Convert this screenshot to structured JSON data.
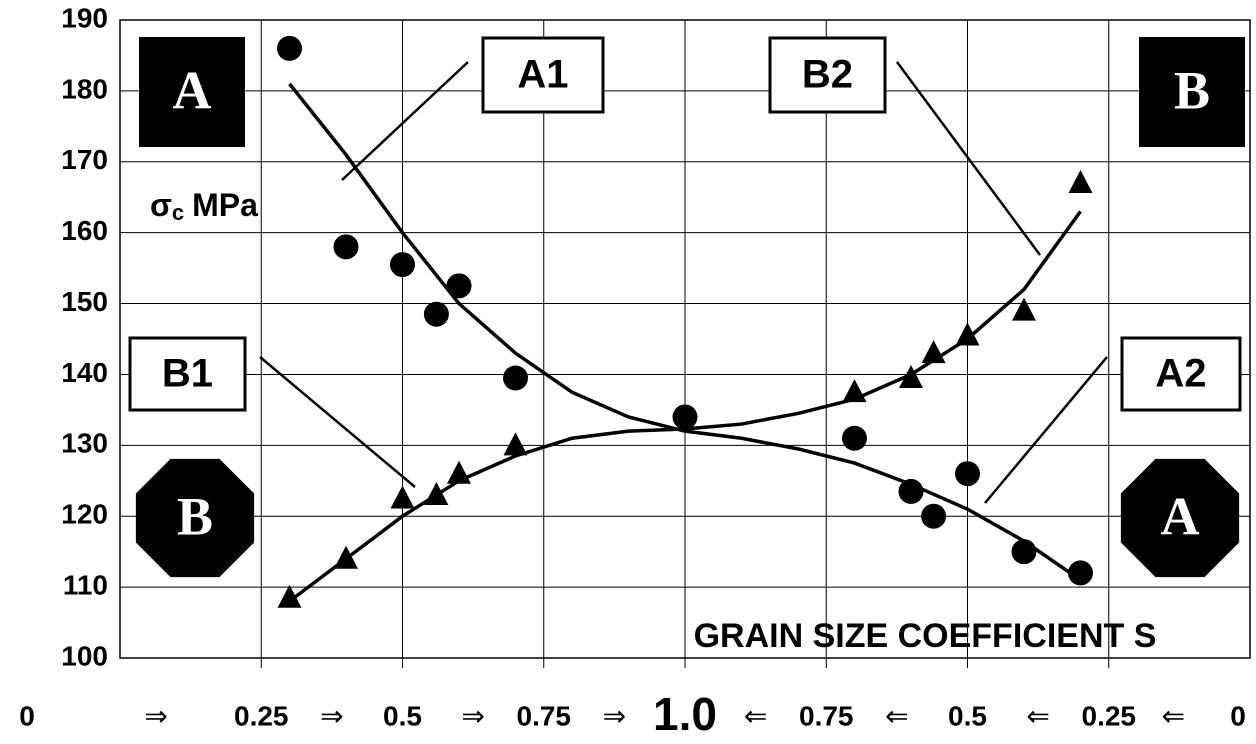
{
  "chart_data": {
    "type": "scatter",
    "y_label": {
      "symbol": "σ",
      "subscript": "c",
      "unit": "MPa"
    },
    "x_label": "GRAIN SIZE COEFFICIENT S",
    "xlim": [
      0,
      2
    ],
    "ylim": [
      100,
      190
    ],
    "xticks": [
      0,
      0.25,
      0.5,
      0.75,
      {
        "value": 1,
        "label": "1.0"
      },
      {
        "value": 1.25,
        "label": "0.75"
      },
      {
        "value": 1.5,
        "label": "0.5"
      },
      {
        "value": 1.75,
        "label": "0.25"
      },
      {
        "value": 2,
        "label": "0"
      }
    ],
    "xtick_separators": [
      "⇒",
      "⇒",
      "⇒",
      "⇒",
      "⇐",
      "⇐",
      "⇐",
      "⇐"
    ],
    "yticks": [
      100,
      110,
      120,
      130,
      140,
      150,
      160,
      170,
      180,
      190
    ],
    "grid": true,
    "series": [
      {
        "marker": "circle",
        "color": "#000000",
        "x": [
          0.3,
          0.4,
          0.5,
          0.56,
          0.6,
          0.7,
          1.0,
          1.3,
          1.4,
          1.44,
          1.5,
          1.6,
          1.7
        ],
        "values": [
          186,
          158,
          155.5,
          148.5,
          152.5,
          139.5,
          134,
          131,
          123.5,
          120,
          126,
          115,
          112
        ]
      },
      {
        "marker": "triangle",
        "color": "#000000",
        "x": [
          0.3,
          0.4,
          0.5,
          0.56,
          0.6,
          0.7,
          1.3,
          1.4,
          1.44,
          1.5,
          1.6,
          1.7
        ],
        "values": [
          108.5,
          114,
          122.5,
          123,
          126,
          130,
          137.5,
          139.5,
          143,
          145.5,
          149,
          167
        ]
      }
    ],
    "fit_lines": [
      {
        "color": "#000000",
        "x": [
          0.3,
          0.4,
          0.5,
          0.6,
          0.7,
          0.8,
          0.9,
          1.0,
          1.1,
          1.2,
          1.3,
          1.4,
          1.5,
          1.6,
          1.7
        ],
        "values": [
          181,
          171,
          160,
          150,
          143,
          137.5,
          134,
          132,
          131,
          129.5,
          127.5,
          124.5,
          121,
          116.5,
          111
        ]
      },
      {
        "color": "#000000",
        "x": [
          0.3,
          0.4,
          0.5,
          0.6,
          0.7,
          0.8,
          0.9,
          1.0,
          1.1,
          1.2,
          1.3,
          1.4,
          1.5,
          1.6,
          1.7
        ],
        "values": [
          108,
          114,
          120,
          125,
          128.5,
          131,
          132,
          132.3,
          133,
          134.5,
          136.5,
          140,
          145,
          152,
          163
        ]
      }
    ],
    "callouts": [
      "A1",
      "B2",
      "B1",
      "A2"
    ],
    "badges": [
      "A",
      "B",
      "B",
      "A"
    ]
  }
}
